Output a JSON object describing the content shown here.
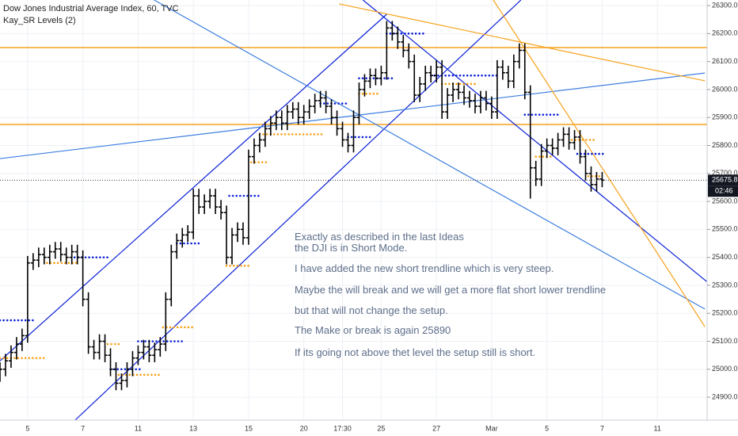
{
  "chart_data": {
    "type": "ohlc",
    "title": "Dow Jones Industrial Average Index, 60, TVC",
    "indicator": "Kay_SR Levels (2)",
    "color": "#000000",
    "open": [
      24980,
      25000,
      25030,
      25060,
      25090,
      25120,
      25380,
      25390,
      25410,
      25400,
      25420,
      25430,
      25410,
      25400,
      25420,
      25400,
      25250,
      25080,
      25060,
      25100,
      25050,
      25000,
      24950,
      24960,
      25000,
      25040,
      25060,
      25080,
      25050,
      25070,
      25090,
      25250,
      25420,
      25460,
      25480,
      25490,
      25620,
      25580,
      25600,
      25620,
      25580,
      25560,
      25400,
      25480,
      25500,
      25470,
      25760,
      25800,
      25820,
      25860,
      25880,
      25900,
      25880,
      25920,
      25930,
      25900,
      25920,
      25940,
      25960,
      25970,
      25940,
      25900,
      25860,
      25820,
      25800,
      25900,
      26000,
      26030,
      26050,
      26040,
      26060,
      26220,
      26200,
      26170,
      26140,
      26100,
      25980,
      26020,
      26060,
      26050,
      26080,
      25920,
      25980,
      26000,
      25990,
      25970,
      25960,
      25940,
      25970,
      25950,
      25920,
      26080,
      26060,
      26030,
      26100,
      26140,
      25990,
      25720,
      25680,
      25780,
      25800,
      25790,
      25820,
      25840,
      25810,
      25830,
      25760,
      25700,
      25660,
      25680
    ],
    "high": [
      25025,
      25055,
      25085,
      25115,
      25145,
      25405,
      25415,
      25435,
      25435,
      25445,
      25455,
      25455,
      25435,
      25445,
      25445,
      25425,
      25275,
      25105,
      25125,
      25125,
      25075,
      25025,
      24985,
      25025,
      25065,
      25085,
      25105,
      25105,
      25095,
      25115,
      25275,
      25445,
      25485,
      25505,
      25515,
      25645,
      25645,
      25625,
      25645,
      25645,
      25605,
      25585,
      25505,
      25525,
      25525,
      25785,
      25825,
      25845,
      25885,
      25905,
      25925,
      25925,
      25945,
      25955,
      25955,
      25945,
      25965,
      25985,
      25995,
      25995,
      25965,
      25925,
      25885,
      25845,
      25925,
      26025,
      26055,
      26075,
      26075,
      26085,
      26245,
      26245,
      26225,
      26195,
      26165,
      26125,
      26045,
      26085,
      26085,
      26105,
      26105,
      26005,
      26025,
      26025,
      26015,
      25995,
      25985,
      25995,
      25995,
      25975,
      26105,
      26105,
      26085,
      26125,
      26165,
      26165,
      26015,
      25745,
      25805,
      25825,
      25825,
      25845,
      25865,
      25865,
      25855,
      25855,
      25785,
      25725,
      25705,
      25705
    ],
    "low": [
      24955,
      24975,
      25005,
      25035,
      25065,
      25095,
      25355,
      25365,
      25375,
      25375,
      25395,
      25385,
      25375,
      25375,
      25375,
      25225,
      25055,
      25035,
      25035,
      25025,
      24975,
      24925,
      24925,
      24935,
      24975,
      25015,
      25035,
      25025,
      25025,
      25045,
      25065,
      25225,
      25395,
      25435,
      25455,
      25465,
      25555,
      25555,
      25575,
      25555,
      25535,
      25375,
      25375,
      25455,
      25445,
      25445,
      25735,
      25775,
      25795,
      25835,
      25855,
      25855,
      25855,
      25895,
      25875,
      25875,
      25895,
      25915,
      25935,
      25915,
      25875,
      25835,
      25795,
      25775,
      25775,
      25875,
      25975,
      26005,
      26015,
      26015,
      26035,
      26175,
      26145,
      26115,
      26075,
      25955,
      25955,
      25995,
      26025,
      26025,
      25895,
      25895,
      25955,
      25965,
      25945,
      25935,
      25915,
      25915,
      25925,
      25895,
      25895,
      26035,
      26005,
      26005,
      26075,
      25965,
      25610,
      25655,
      25655,
      25755,
      25765,
      25765,
      25795,
      25785,
      25785,
      25735,
      25675,
      25635,
      25635,
      25651
    ],
    "close": [
      25000,
      25030,
      25060,
      25090,
      25120,
      25380,
      25390,
      25410,
      25400,
      25420,
      25430,
      25410,
      25400,
      25420,
      25400,
      25250,
      25080,
      25060,
      25100,
      25050,
      25000,
      24950,
      24960,
      25000,
      25040,
      25060,
      25080,
      25050,
      25070,
      25090,
      25250,
      25420,
      25460,
      25480,
      25490,
      25620,
      25580,
      25600,
      25620,
      25580,
      25560,
      25400,
      25480,
      25500,
      25470,
      25760,
      25800,
      25820,
      25860,
      25880,
      25900,
      25880,
      25920,
      25930,
      25900,
      25920,
      25940,
      25960,
      25970,
      25940,
      25900,
      25860,
      25820,
      25800,
      25900,
      26000,
      26030,
      26050,
      26040,
      26060,
      26220,
      26200,
      26170,
      26140,
      26100,
      25980,
      26020,
      26060,
      26050,
      26080,
      25920,
      25980,
      26000,
      25990,
      25970,
      25960,
      25940,
      25970,
      25950,
      25920,
      26080,
      26060,
      26030,
      26100,
      26140,
      25990,
      25720,
      25680,
      25780,
      25800,
      25790,
      25820,
      25840,
      25810,
      25830,
      25760,
      25700,
      25660,
      25680,
      25676
    ],
    "xlim": [
      0,
      128
    ],
    "ylim": [
      24818,
      26320
    ],
    "yticks": [
      {
        "value": 26300,
        "label": "26300.0"
      },
      {
        "value": 26200,
        "label": "26200.0"
      },
      {
        "value": 26100,
        "label": "26100.0"
      },
      {
        "value": 26000,
        "label": "26000.0"
      },
      {
        "value": 25900,
        "label": "25900.0"
      },
      {
        "value": 25800,
        "label": "25800.0"
      },
      {
        "value": 25700,
        "label": "25700.0"
      },
      {
        "value": 25600,
        "label": "25600.0"
      },
      {
        "value": 25500,
        "label": "25500.0"
      },
      {
        "value": 25400,
        "label": "25400.0"
      },
      {
        "value": 25300,
        "label": "25300.0"
      },
      {
        "value": 25200,
        "label": "25200.0"
      },
      {
        "value": 25100,
        "label": "25100.0"
      },
      {
        "value": 25000,
        "label": "25000.0"
      },
      {
        "value": 24900,
        "label": "24900.0"
      }
    ],
    "xticks": [
      {
        "value": 5,
        "label": "5"
      },
      {
        "value": 15,
        "label": "7"
      },
      {
        "value": 25,
        "label": "11"
      },
      {
        "value": 35,
        "label": "13"
      },
      {
        "value": 45,
        "label": "15"
      },
      {
        "value": 55,
        "label": "20"
      },
      {
        "value": 62,
        "label": "17:30"
      },
      {
        "value": 69,
        "label": "25"
      },
      {
        "value": 79,
        "label": "27"
      },
      {
        "value": 89,
        "label": "Mar"
      },
      {
        "value": 99,
        "label": "5"
      },
      {
        "value": 109,
        "label": "7"
      },
      {
        "value": 119,
        "label": "11"
      }
    ],
    "grid": true,
    "horizontal_lines": [
      {
        "price": 26150,
        "color": "#f7a21b"
      },
      {
        "price": 25875,
        "color": "#f7a21b"
      }
    ],
    "trendlines": [
      {
        "x": [
          0,
          70
        ],
        "y": [
          25030,
          26269
        ],
        "color": "#0a1fd6"
      },
      {
        "x": [
          13.6,
          94.3
        ],
        "y": [
          24818,
          26320
        ],
        "color": "#0a1fd6"
      },
      {
        "x": [
          65.7,
          127.9
        ],
        "y": [
          26320,
          25314
        ],
        "color": "#0a1fd6"
      },
      {
        "x": [
          0,
          127.6
        ],
        "y": [
          25753,
          26059
        ],
        "color": "#3d7ee0"
      },
      {
        "x": [
          27.9,
          127.6
        ],
        "y": [
          26320,
          25215
        ],
        "color": "#3d7ee0"
      },
      {
        "x": [
          61.4,
          127.6
        ],
        "y": [
          26306,
          26031
        ],
        "color": "#f7a21b"
      },
      {
        "x": [
          89.3,
          127.6
        ],
        "y": [
          26320,
          25152
        ],
        "color": "#f7a21b"
      }
    ],
    "levels": [
      {
        "x": [
          0,
          6.5
        ],
        "price": 25175,
        "color": "#0a1fd6"
      },
      {
        "x": [
          0,
          8
        ],
        "price": 25040,
        "color": "#f7a21b"
      },
      {
        "x": [
          8.5,
          14
        ],
        "price": 25380,
        "color": "#f7a21b"
      },
      {
        "x": [
          13.5,
          20
        ],
        "price": 25400,
        "color": "#0a1fd6"
      },
      {
        "x": [
          19.5,
          22
        ],
        "price": 25090,
        "color": "#f7a21b"
      },
      {
        "x": [
          20,
          25.5
        ],
        "price": 25000,
        "color": "#0a1fd6"
      },
      {
        "x": [
          21.5,
          29
        ],
        "price": 24980,
        "color": "#f7a21b"
      },
      {
        "x": [
          25,
          33.5
        ],
        "price": 25100,
        "color": "#0a1fd6"
      },
      {
        "x": [
          29.5,
          35
        ],
        "price": 25150,
        "color": "#f7a21b"
      },
      {
        "x": [
          32,
          36.5
        ],
        "price": 25450,
        "color": "#0a1fd6"
      },
      {
        "x": [
          41,
          45
        ],
        "price": 25370,
        "color": "#f7a21b"
      },
      {
        "x": [
          41.5,
          47
        ],
        "price": 25620,
        "color": "#0a1fd6"
      },
      {
        "x": [
          45.5,
          48.5
        ],
        "price": 25740,
        "color": "#f7a21b"
      },
      {
        "x": [
          47,
          58.5
        ],
        "price": 25840,
        "color": "#f7a21b"
      },
      {
        "x": [
          58,
          63
        ],
        "price": 25950,
        "color": "#0a1fd6"
      },
      {
        "x": [
          63,
          67
        ],
        "price": 25830,
        "color": "#0a1fd6"
      },
      {
        "x": [
          65,
          71.5
        ],
        "price": 26040,
        "color": "#0a1fd6"
      },
      {
        "x": [
          65,
          68.5
        ],
        "price": 25985,
        "color": "#f7a21b"
      },
      {
        "x": [
          70,
          77
        ],
        "price": 26200,
        "color": "#0a1fd6"
      },
      {
        "x": [
          78,
          90
        ],
        "price": 26050,
        "color": "#0a1fd6"
      },
      {
        "x": [
          80,
          86
        ],
        "price": 26020,
        "color": "#f7a21b"
      },
      {
        "x": [
          95,
          101.5
        ],
        "price": 25910,
        "color": "#0a1fd6"
      },
      {
        "x": [
          97,
          100
        ],
        "price": 25760,
        "color": "#f7a21b"
      },
      {
        "x": [
          103.5,
          107.5
        ],
        "price": 25820,
        "color": "#f7a21b"
      },
      {
        "x": [
          104.5,
          109.5
        ],
        "price": 25770,
        "color": "#0a1fd6"
      },
      {
        "x": [
          106.5,
          109
        ],
        "price": 25690,
        "color": "#f7a21b"
      }
    ],
    "last_price": 25675.8,
    "countdown": "02:46",
    "annotations": [
      "Exactly as described in the last Ideas",
      "the DJI is in Short Mode.",
      "I have added the new short trendline which is very steep.",
      "Maybe the will break and we will get a more flat short lower trendline",
      "but that will not change the setup.",
      "The Make or break is again 25890",
      "If its going not above thet level the setup still is short."
    ]
  }
}
